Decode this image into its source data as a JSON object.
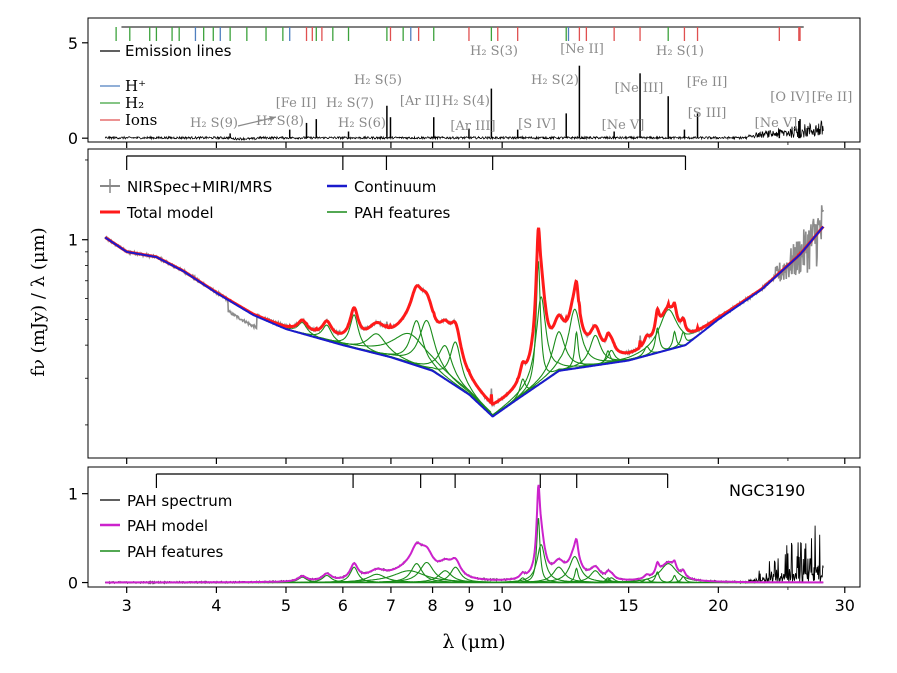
{
  "chart_data": {
    "type": "line",
    "figure_label": "NGC3190",
    "x_axis": {
      "label": "λ (μm)",
      "scale": "log",
      "range": [
        2.65,
        31.5
      ],
      "ticks": [
        3,
        4,
        5,
        6,
        7,
        8,
        9,
        10,
        15,
        20,
        30
      ],
      "tick_labels": [
        "3",
        "4",
        "5",
        "6",
        "7",
        "8",
        "9",
        "10",
        "15",
        "20",
        "30"
      ]
    },
    "panels": [
      {
        "id": "lines",
        "type": "line",
        "ylim": [
          -0.2,
          6.3
        ],
        "yticks": [
          0,
          5
        ],
        "ytick_labels": [
          "0",
          "5"
        ],
        "legend": [
          {
            "label": "Emission lines",
            "color": "#000000"
          },
          {
            "label": "H⁺",
            "color": "#4f7fbf"
          },
          {
            "label": "H₂",
            "color": "#3ca23c"
          },
          {
            "label": "Ions",
            "color": "#e05050"
          }
        ],
        "emission_lines": [
          {
            "wavelength": 4.18,
            "strength": 0.25
          },
          {
            "wavelength": 5.06,
            "strength": 0.45
          },
          {
            "wavelength": 5.34,
            "strength": 0.8
          },
          {
            "wavelength": 5.51,
            "strength": 1.0
          },
          {
            "wavelength": 6.11,
            "strength": 0.35
          },
          {
            "wavelength": 6.91,
            "strength": 1.7
          },
          {
            "wavelength": 6.99,
            "strength": 1.1
          },
          {
            "wavelength": 8.03,
            "strength": 1.1
          },
          {
            "wavelength": 8.99,
            "strength": 0.5
          },
          {
            "wavelength": 9.66,
            "strength": 2.6
          },
          {
            "wavelength": 10.51,
            "strength": 0.45
          },
          {
            "wavelength": 12.28,
            "strength": 1.3
          },
          {
            "wavelength": 12.81,
            "strength": 3.8
          },
          {
            "wavelength": 14.32,
            "strength": 0.35
          },
          {
            "wavelength": 15.56,
            "strength": 3.4
          },
          {
            "wavelength": 17.03,
            "strength": 2.2
          },
          {
            "wavelength": 17.94,
            "strength": 0.45
          },
          {
            "wavelength": 18.71,
            "strength": 1.3
          },
          {
            "wavelength": 24.32,
            "strength": 0.45
          },
          {
            "wavelength": 25.89,
            "strength": 0.9
          },
          {
            "wavelength": 25.99,
            "strength": 1.0
          }
        ],
        "line_markers": [
          {
            "wavelength": 2.9,
            "species": "H2"
          },
          {
            "wavelength": 3.03,
            "species": "H2"
          },
          {
            "wavelength": 3.23,
            "species": "H2"
          },
          {
            "wavelength": 3.3,
            "species": "H2"
          },
          {
            "wavelength": 3.47,
            "species": "H2"
          },
          {
            "wavelength": 3.55,
            "species": "H2"
          },
          {
            "wavelength": 3.74,
            "species": "Hplus"
          },
          {
            "wavelength": 3.84,
            "species": "H2"
          },
          {
            "wavelength": 3.96,
            "species": "H2"
          },
          {
            "wavelength": 4.05,
            "species": "Hplus"
          },
          {
            "wavelength": 4.18,
            "species": "H2"
          },
          {
            "wavelength": 4.41,
            "species": "H2"
          },
          {
            "wavelength": 4.69,
            "species": "H2"
          },
          {
            "wavelength": 4.95,
            "species": "H2"
          },
          {
            "wavelength": 5.06,
            "species": "Hplus"
          },
          {
            "wavelength": 5.34,
            "species": "Ions"
          },
          {
            "wavelength": 5.44,
            "species": "Ions"
          },
          {
            "wavelength": 5.51,
            "species": "H2"
          },
          {
            "wavelength": 5.61,
            "species": "Ions"
          },
          {
            "wavelength": 5.81,
            "species": "H2"
          },
          {
            "wavelength": 6.11,
            "species": "H2"
          },
          {
            "wavelength": 6.91,
            "species": "H2"
          },
          {
            "wavelength": 6.99,
            "species": "Ions"
          },
          {
            "wavelength": 7.28,
            "species": "H2"
          },
          {
            "wavelength": 7.46,
            "species": "Hplus"
          },
          {
            "wavelength": 7.65,
            "species": "Ions"
          },
          {
            "wavelength": 8.03,
            "species": "H2"
          },
          {
            "wavelength": 8.99,
            "species": "Ions"
          },
          {
            "wavelength": 9.66,
            "species": "H2"
          },
          {
            "wavelength": 9.86,
            "species": "Ions"
          },
          {
            "wavelength": 10.51,
            "species": "Ions"
          },
          {
            "wavelength": 12.28,
            "species": "H2"
          },
          {
            "wavelength": 12.37,
            "species": "Hplus"
          },
          {
            "wavelength": 12.81,
            "species": "Ions"
          },
          {
            "wavelength": 13.1,
            "species": "Ions"
          },
          {
            "wavelength": 14.32,
            "species": "Ions"
          },
          {
            "wavelength": 15.56,
            "species": "Ions"
          },
          {
            "wavelength": 17.03,
            "species": "H2"
          },
          {
            "wavelength": 17.94,
            "species": "Ions"
          },
          {
            "wavelength": 18.71,
            "species": "Ions"
          },
          {
            "wavelength": 24.32,
            "species": "Ions"
          },
          {
            "wavelength": 25.89,
            "species": "Ions"
          },
          {
            "wavelength": 25.99,
            "species": "Ions"
          }
        ],
        "annotations": [
          {
            "text": "H₂ S(9)",
            "wavelength": 4.3
          },
          {
            "text": "H₂ S(8)",
            "wavelength": 4.55
          },
          {
            "text": "[Fe II]",
            "wavelength": 5.0
          },
          {
            "text": "H₂ S(7)",
            "wavelength": 5.5
          },
          {
            "text": "H₂ S(6)",
            "wavelength": 6.1
          },
          {
            "text": "H₂ S(5)",
            "wavelength": 6.9
          },
          {
            "text": "[Ar II]",
            "wavelength": 6.99
          },
          {
            "text": "H₂ S(4)",
            "wavelength": 8.03
          },
          {
            "text": "[Ar III]",
            "wavelength": 8.99
          },
          {
            "text": "H₂ S(3)",
            "wavelength": 9.66
          },
          {
            "text": "[S IV]",
            "wavelength": 10.51
          },
          {
            "text": "H₂ S(2)",
            "wavelength": 12.28
          },
          {
            "text": "[Ne II]",
            "wavelength": 12.81
          },
          {
            "text": "[Ne V]",
            "wavelength": 14.32
          },
          {
            "text": "[Ne III]",
            "wavelength": 15.56
          },
          {
            "text": "H₂ S(1)",
            "wavelength": 17.03
          },
          {
            "text": "[Fe II]",
            "wavelength": 17.94
          },
          {
            "text": "[S III]",
            "wavelength": 18.71
          },
          {
            "text": "[Ne V]",
            "wavelength": 24.32
          },
          {
            "text": "[O IV]",
            "wavelength": 25.89
          },
          {
            "text": "[Fe II]",
            "wavelength": 25.99
          }
        ]
      },
      {
        "id": "fit",
        "type": "line",
        "ylabel": "fν (mJy) / λ (μm)",
        "y_scale": "log",
        "ylim": [
          0.15,
          2.2
        ],
        "yticks": [
          1
        ],
        "ytick_labels": [
          "1"
        ],
        "legend": [
          {
            "label": "NIRSpec+MIRI/MRS",
            "color": "#888888"
          },
          {
            "label": "Total model",
            "color": "#ff1a1a"
          },
          {
            "label": "Continuum",
            "color": "#1a1acc"
          },
          {
            "label": "PAH features",
            "color": "#1a8c1a"
          }
        ],
        "pah_complex_brackets": [
          [
            3.0,
            6.0,
            6.9,
            9.7,
            18.0
          ]
        ],
        "continuum": {
          "x": [
            2.8,
            3.0,
            3.3,
            3.6,
            4.0,
            4.5,
            5.0,
            6.0,
            7.0,
            8.0,
            9.0,
            9.7,
            10.5,
            12.0,
            15.0,
            18.0,
            20.0,
            23.0,
            26.0,
            28.0
          ],
          "y": [
            1.02,
            0.9,
            0.86,
            0.76,
            0.63,
            0.52,
            0.46,
            0.4,
            0.36,
            0.32,
            0.26,
            0.215,
            0.25,
            0.32,
            0.35,
            0.4,
            0.5,
            0.65,
            0.88,
            1.12
          ]
        },
        "pah_features": [
          {
            "center": 5.27,
            "height": 0.045,
            "fwhm": 0.18
          },
          {
            "center": 5.7,
            "height": 0.06,
            "fwhm": 0.2
          },
          {
            "center": 6.22,
            "height": 0.13,
            "fwhm": 0.19
          },
          {
            "center": 6.69,
            "height": 0.07,
            "fwhm": 0.47
          },
          {
            "center": 7.42,
            "height": 0.1,
            "fwhm": 0.94
          },
          {
            "center": 7.6,
            "height": 0.16,
            "fwhm": 0.33
          },
          {
            "center": 7.85,
            "height": 0.17,
            "fwhm": 0.42
          },
          {
            "center": 8.33,
            "height": 0.1,
            "fwhm": 0.42
          },
          {
            "center": 8.61,
            "height": 0.13,
            "fwhm": 0.34
          },
          {
            "center": 10.68,
            "height": 0.04,
            "fwhm": 0.21
          },
          {
            "center": 11.23,
            "height": 0.55,
            "fwhm": 0.14
          },
          {
            "center": 11.33,
            "height": 0.32,
            "fwhm": 0.36
          },
          {
            "center": 11.99,
            "height": 0.13,
            "fwhm": 0.54
          },
          {
            "center": 12.62,
            "height": 0.22,
            "fwhm": 0.53
          },
          {
            "center": 12.69,
            "height": 0.12,
            "fwhm": 0.16
          },
          {
            "center": 13.48,
            "height": 0.1,
            "fwhm": 0.54
          },
          {
            "center": 14.04,
            "height": 0.04,
            "fwhm": 0.22
          },
          {
            "center": 14.19,
            "height": 0.04,
            "fwhm": 0.36
          },
          {
            "center": 15.9,
            "height": 0.03,
            "fwhm": 0.32
          },
          {
            "center": 16.45,
            "height": 0.09,
            "fwhm": 0.23
          },
          {
            "center": 17.04,
            "height": 0.16,
            "fwhm": 1.11
          },
          {
            "center": 17.38,
            "height": 0.06,
            "fwhm": 0.21
          },
          {
            "center": 17.87,
            "height": 0.05,
            "fwhm": 0.28
          }
        ]
      },
      {
        "id": "pah",
        "type": "line",
        "ylim": [
          -0.05,
          1.3
        ],
        "yticks": [
          0,
          1
        ],
        "ytick_labels": [
          "0",
          "1"
        ],
        "legend": [
          {
            "label": "PAH spectrum",
            "color": "#000000"
          },
          {
            "label": "PAH model",
            "color": "#cc22cc"
          },
          {
            "label": "PAH features",
            "color": "#1a8c1a"
          }
        ],
        "pah_complex_brackets": [
          [
            3.3,
            6.2,
            7.7,
            8.6,
            11.3,
            12.7,
            17.0
          ]
        ],
        "pah_scale_factor": 1.33
      }
    ]
  }
}
